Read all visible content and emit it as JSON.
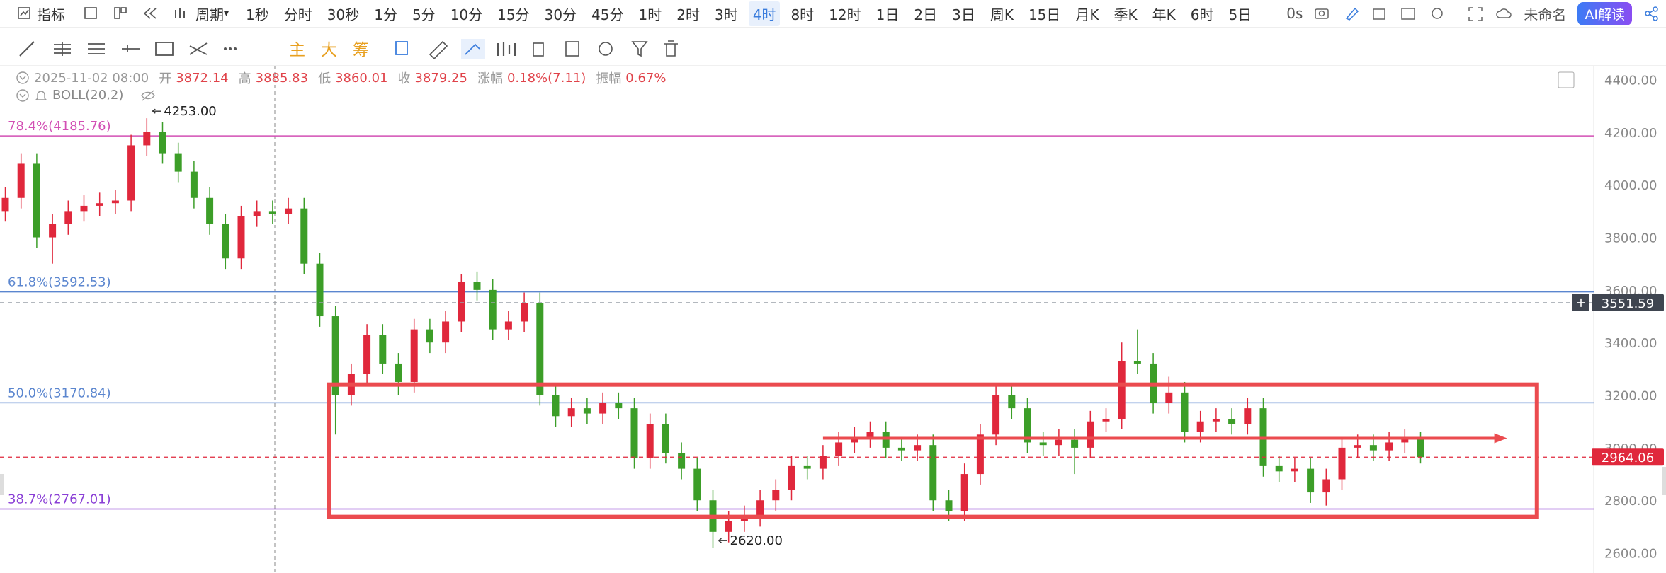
{
  "toolbar": {
    "indicator": "指标",
    "period": "周期",
    "intervals": [
      "1秒",
      "分时",
      "30秒",
      "1分",
      "5分",
      "10分",
      "15分",
      "30分",
      "45分",
      "1时",
      "2时",
      "3时",
      "4时",
      "8时",
      "12时",
      "1日",
      "2日",
      "3日",
      "周K",
      "15日",
      "月K",
      "季K",
      "年K",
      "6时",
      "5日"
    ],
    "active_index": 12,
    "timer": "0s",
    "layout_name": "未命名",
    "ai_button": "AI解读"
  },
  "drawing_toolbar": {
    "modes": [
      "主",
      "大",
      "筹"
    ]
  },
  "info": {
    "date": "2025-11-02 08:00",
    "open_label": "开",
    "open": "3872.14",
    "high_label": "高",
    "high": "3885.83",
    "low_label": "低",
    "low": "3860.01",
    "close_label": "收",
    "close": "3879.25",
    "change_label": "涨幅",
    "change": "0.18%(7.11)",
    "amplitude_label": "振幅",
    "amplitude": "0.67%",
    "indicator": "BOLL(20,2)"
  },
  "chart_data": {
    "type": "candlestick",
    "ylim": [
      2523.5,
      4452.5
    ],
    "yticks": [
      {
        "value": 2600,
        "label": "2600.00"
      },
      {
        "value": 2800,
        "label": "2800.00"
      },
      {
        "value": 3000,
        "label": "3000.00"
      },
      {
        "value": 3200,
        "label": "3200.00"
      },
      {
        "value": 3400,
        "label": "3400.00"
      },
      {
        "value": 3600,
        "label": "3600.00"
      },
      {
        "value": 3800,
        "label": "3800.00"
      },
      {
        "value": 4000,
        "label": "4000.00"
      },
      {
        "value": 4200,
        "label": "4200.00"
      },
      {
        "value": 4400,
        "label": "4400.00"
      }
    ],
    "grid": false,
    "up_color": "#e0283c",
    "down_color": "#3c9e28",
    "open": [
      3900,
      3950,
      4080,
      3800,
      3850,
      3900,
      3920,
      3930,
      3940,
      4150,
      4200,
      4120,
      4050,
      3950,
      3850,
      3720,
      3880,
      3900,
      3890,
      3910,
      3700,
      3500,
      3200,
      3280,
      3430,
      3320,
      3250,
      3450,
      3400,
      3480,
      3630,
      3600,
      3450,
      3480,
      3550,
      3200,
      3120,
      3150,
      3130,
      3170,
      3150,
      2960,
      3090,
      2980,
      2920,
      2800,
      2680,
      2720,
      2740,
      2800,
      2840,
      2930,
      2920,
      2970,
      3020,
      3040,
      3060,
      3000,
      2990,
      3010,
      2800,
      2760,
      2900,
      3050,
      3200,
      3150,
      3020,
      3010,
      3030,
      3000,
      3100,
      3110,
      3330,
      3320,
      3170,
      3210,
      3060,
      3100,
      3110,
      3090,
      3150,
      2930,
      2910,
      2920,
      2830,
      2880,
      3000,
      3010,
      2990,
      3020,
      3040
    ],
    "high": [
      3990,
      4120,
      4120,
      3890,
      3940,
      3960,
      3970,
      3980,
      4190,
      4253,
      4240,
      4160,
      4090,
      3990,
      3890,
      3920,
      3940,
      3940,
      3950,
      3950,
      3740,
      3540,
      3320,
      3470,
      3470,
      3360,
      3490,
      3490,
      3520,
      3660,
      3670,
      3640,
      3520,
      3590,
      3590,
      3240,
      3190,
      3190,
      3210,
      3210,
      3190,
      3130,
      3130,
      3020,
      2960,
      2840,
      2760,
      2780,
      2840,
      2880,
      2970,
      2970,
      3010,
      3060,
      3080,
      3100,
      3100,
      3040,
      3050,
      3050,
      2840,
      2940,
      3090,
      3240,
      3240,
      3190,
      3060,
      3070,
      3070,
      3140,
      3150,
      3400,
      3450,
      3360,
      3270,
      3250,
      3140,
      3150,
      3150,
      3190,
      3190,
      2970,
      2960,
      2960,
      2920,
      3040,
      3050,
      3050,
      3060,
      3070,
      3060
    ],
    "low": [
      3860,
      3910,
      3760,
      3700,
      3810,
      3860,
      3880,
      3890,
      3900,
      4110,
      4080,
      4010,
      3910,
      3810,
      3680,
      3680,
      3840,
      3850,
      3850,
      3660,
      3460,
      3050,
      3160,
      3240,
      3280,
      3200,
      3210,
      3360,
      3360,
      3440,
      3560,
      3410,
      3410,
      3440,
      3160,
      3080,
      3080,
      3090,
      3090,
      3110,
      2920,
      2920,
      2940,
      2880,
      2760,
      2620,
      2640,
      2680,
      2700,
      2760,
      2800,
      2880,
      2880,
      2930,
      2980,
      3000,
      2960,
      2950,
      2950,
      2760,
      2720,
      2720,
      2860,
      3010,
      3110,
      2980,
      2970,
      2970,
      2900,
      2960,
      3060,
      3070,
      3280,
      3130,
      3130,
      3020,
      3020,
      3060,
      3050,
      3050,
      2890,
      2870,
      2870,
      2790,
      2780,
      2840,
      2960,
      2950,
      2950,
      2980,
      2940
    ],
    "close": [
      3950,
      4080,
      3800,
      3850,
      3900,
      3920,
      3930,
      3940,
      4150,
      4200,
      4120,
      4050,
      3950,
      3850,
      3720,
      3880,
      3900,
      3890,
      3910,
      3700,
      3500,
      3200,
      3280,
      3430,
      3320,
      3250,
      3450,
      3400,
      3480,
      3630,
      3600,
      3450,
      3480,
      3550,
      3200,
      3120,
      3150,
      3130,
      3170,
      3150,
      2960,
      3090,
      2980,
      2920,
      2800,
      2680,
      2720,
      2740,
      2800,
      2840,
      2930,
      2920,
      2970,
      3020,
      3040,
      3060,
      3000,
      2990,
      3010,
      2800,
      2760,
      2900,
      3050,
      3200,
      3150,
      3020,
      3010,
      3030,
      3000,
      3100,
      3110,
      3330,
      3320,
      3170,
      3210,
      3060,
      3100,
      3110,
      3090,
      3150,
      2930,
      2910,
      2920,
      2830,
      2880,
      3000,
      3010,
      2990,
      3020,
      3040,
      2964
    ],
    "fib_levels": [
      {
        "label": "78.4%(4185.76)",
        "value": 4185.76,
        "color": "#d24fb4"
      },
      {
        "label": "61.8%(3592.53)",
        "value": 3592.53,
        "color": "#5b86cf"
      },
      {
        "label": "50.0%(3170.84)",
        "value": 3170.84,
        "color": "#5b86cf"
      },
      {
        "label": "38.7%(2767.01)",
        "value": 2767.01,
        "color": "#8a3fd6"
      }
    ],
    "price_tags": [
      {
        "label": "3551.59",
        "value": 3551.59,
        "color": "#3f4550",
        "line_color": "#9aa0a8"
      },
      {
        "label": "2964.06",
        "value": 2964.06,
        "color": "#e0283c",
        "line_color": "#e0283c"
      }
    ],
    "annotations": [
      {
        "x": 9,
        "value": 4253,
        "label": "4253.00"
      },
      {
        "x": 45,
        "value": 2620,
        "label": "2620.00"
      }
    ],
    "box": {
      "x": [
        20.6,
        97.4
      ],
      "y": [
        2737,
        3240
      ],
      "color": "#eb4b4f"
    },
    "arrow": {
      "x": [
        52,
        95.5
      ],
      "y": 3036,
      "color": "#eb4b4f"
    }
  }
}
